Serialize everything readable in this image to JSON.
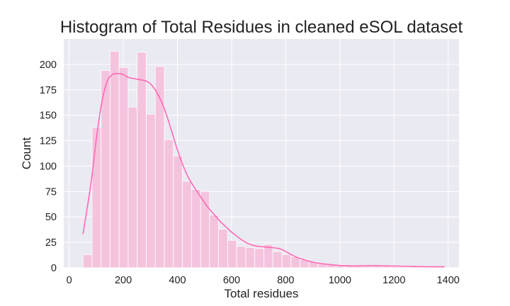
{
  "chart_data": {
    "type": "bar",
    "title": "Histogram of Total Residues in cleaned eSOL dataset",
    "xlabel": "Total residues",
    "ylabel": "Count",
    "xlim": [
      -20,
      1440
    ],
    "ylim": [
      0,
      225
    ],
    "xticks": [
      0,
      200,
      400,
      600,
      800,
      1000,
      1200,
      1400
    ],
    "yticks": [
      0,
      25,
      50,
      75,
      100,
      125,
      150,
      175,
      200
    ],
    "grid": true,
    "bin_edges": [
      51,
      84.4,
      117.8,
      151.2,
      184.6,
      218,
      251.4,
      284.8,
      318.2,
      351.6,
      385,
      418.4,
      451.8,
      485.2,
      518.6,
      552,
      585.4,
      618.8,
      652.2,
      685.6,
      719,
      752.4,
      785.8,
      819.2,
      852.6,
      886,
      919.4,
      952.8,
      986.2,
      1019.6,
      1053,
      1086.4,
      1119.8,
      1153.2,
      1186.6,
      1220,
      1253.4,
      1286.8,
      1320.2,
      1353.6,
      1387
    ],
    "counts": [
      13,
      138,
      194,
      213,
      197,
      158,
      212,
      151,
      198,
      126,
      110,
      85,
      77,
      75,
      52,
      38,
      27,
      21,
      20,
      19,
      23,
      16,
      13,
      11,
      8,
      6,
      4,
      3,
      3,
      2,
      2,
      2,
      2,
      2,
      1,
      1,
      1,
      1,
      1,
      1
    ],
    "kde": {
      "x": [
        51,
        80,
        100,
        120,
        140,
        160,
        180,
        200,
        220,
        240,
        260,
        280,
        300,
        320,
        340,
        360,
        380,
        400,
        420,
        440,
        460,
        480,
        500,
        520,
        540,
        560,
        580,
        600,
        620,
        640,
        660,
        680,
        700,
        720,
        740,
        760,
        780,
        800,
        820,
        840,
        860,
        880,
        900,
        950,
        1000,
        1050,
        1100,
        1150,
        1200,
        1250,
        1300,
        1350,
        1387
      ],
      "y": [
        33,
        82,
        126,
        162,
        183,
        190,
        191,
        190,
        187,
        186,
        185,
        184,
        181,
        174,
        164,
        150,
        133,
        116,
        101,
        89,
        80,
        72,
        64,
        57,
        51,
        45,
        40,
        35,
        31,
        27,
        24,
        22,
        21,
        20.5,
        20,
        19.5,
        18.5,
        16,
        13,
        10.5,
        8.5,
        7,
        5.5,
        3.5,
        2.3,
        1.8,
        2,
        2,
        1.7,
        1.4,
        1.1,
        1,
        1
      ]
    },
    "colors": {
      "plot_background": "#eaeaf2",
      "grid": "#ffffff",
      "bar_fill": "#f4c4de",
      "bar_edge": "#ffffff",
      "kde_line": "#ff69b4"
    }
  }
}
